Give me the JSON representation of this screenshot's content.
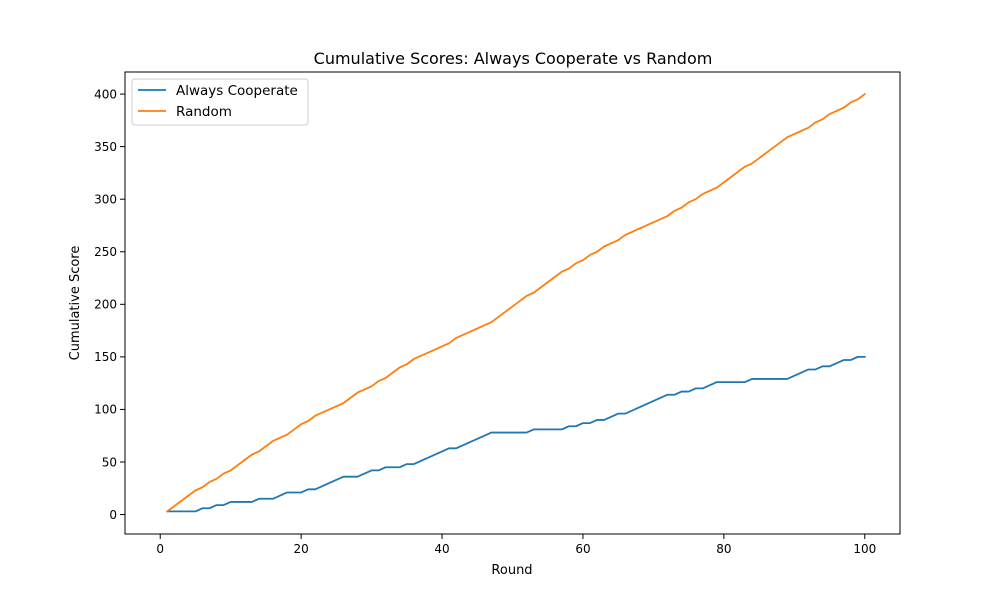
{
  "chart_data": {
    "type": "line",
    "title": "Cumulative Scores: Always Cooperate vs Random",
    "xlabel": "Round",
    "ylabel": "Cumulative Score",
    "xlim": [
      -5,
      105
    ],
    "ylim": [
      -18.5,
      421
    ],
    "xticks": [
      0,
      20,
      40,
      60,
      80,
      100
    ],
    "yticks": [
      0,
      50,
      100,
      150,
      200,
      250,
      300,
      350,
      400
    ],
    "grid": false,
    "legend_position": "top-left",
    "series": [
      {
        "name": "Always Cooperate",
        "color": "#1f77b4",
        "points": [
          [
            1,
            3
          ],
          [
            5,
            3
          ],
          [
            6,
            6
          ],
          [
            7,
            6
          ],
          [
            8,
            9
          ],
          [
            9,
            9
          ],
          [
            10,
            12
          ],
          [
            13,
            12
          ],
          [
            14,
            15
          ],
          [
            16,
            15
          ],
          [
            18,
            21
          ],
          [
            20,
            21
          ],
          [
            21,
            24
          ],
          [
            22,
            24
          ],
          [
            26,
            36
          ],
          [
            28,
            36
          ],
          [
            30,
            42
          ],
          [
            31,
            42
          ],
          [
            32,
            45
          ],
          [
            34,
            45
          ],
          [
            35,
            48
          ],
          [
            36,
            48
          ],
          [
            41,
            63
          ],
          [
            42,
            63
          ],
          [
            47,
            78
          ],
          [
            52,
            78
          ],
          [
            53,
            81
          ],
          [
            57,
            81
          ],
          [
            58,
            84
          ],
          [
            59,
            84
          ],
          [
            60,
            87
          ],
          [
            61,
            87
          ],
          [
            62,
            90
          ],
          [
            63,
            90
          ],
          [
            65,
            96
          ],
          [
            66,
            96
          ],
          [
            72,
            114
          ],
          [
            73,
            114
          ],
          [
            74,
            117
          ],
          [
            75,
            117
          ],
          [
            76,
            120
          ],
          [
            77,
            120
          ],
          [
            79,
            126
          ],
          [
            83,
            126
          ],
          [
            84,
            129
          ],
          [
            89,
            129
          ],
          [
            92,
            138
          ],
          [
            93,
            138
          ],
          [
            94,
            141
          ],
          [
            95,
            141
          ],
          [
            97,
            147
          ],
          [
            98,
            147
          ],
          [
            99,
            150
          ],
          [
            100,
            150
          ]
        ]
      },
      {
        "name": "Random",
        "color": "#ff7f0e",
        "points": [
          [
            1,
            3
          ],
          [
            3,
            13
          ],
          [
            5,
            23
          ],
          [
            6,
            26
          ],
          [
            7,
            31
          ],
          [
            8,
            34
          ],
          [
            9,
            39
          ],
          [
            10,
            42
          ],
          [
            11,
            47
          ],
          [
            12,
            52
          ],
          [
            13,
            57
          ],
          [
            14,
            60
          ],
          [
            15,
            65
          ],
          [
            16,
            70
          ],
          [
            17,
            73
          ],
          [
            18,
            76
          ],
          [
            19,
            81
          ],
          [
            20,
            86
          ],
          [
            21,
            89
          ],
          [
            22,
            94
          ],
          [
            23,
            97
          ],
          [
            24,
            100
          ],
          [
            25,
            103
          ],
          [
            26,
            106
          ],
          [
            27,
            111
          ],
          [
            28,
            116
          ],
          [
            29,
            119
          ],
          [
            30,
            122
          ],
          [
            31,
            127
          ],
          [
            32,
            130
          ],
          [
            33,
            135
          ],
          [
            34,
            140
          ],
          [
            35,
            143
          ],
          [
            36,
            148
          ],
          [
            37,
            151
          ],
          [
            38,
            154
          ],
          [
            39,
            157
          ],
          [
            40,
            160
          ],
          [
            41,
            163
          ],
          [
            42,
            168
          ],
          [
            43,
            171
          ],
          [
            44,
            174
          ],
          [
            45,
            177
          ],
          [
            46,
            180
          ],
          [
            47,
            183
          ],
          [
            48,
            188
          ],
          [
            49,
            193
          ],
          [
            50,
            198
          ],
          [
            51,
            203
          ],
          [
            52,
            208
          ],
          [
            53,
            211
          ],
          [
            54,
            216
          ],
          [
            55,
            221
          ],
          [
            56,
            226
          ],
          [
            57,
            231
          ],
          [
            58,
            234
          ],
          [
            59,
            239
          ],
          [
            60,
            242
          ],
          [
            61,
            247
          ],
          [
            62,
            250
          ],
          [
            63,
            255
          ],
          [
            64,
            258
          ],
          [
            65,
            261
          ],
          [
            66,
            266
          ],
          [
            67,
            269
          ],
          [
            68,
            272
          ],
          [
            69,
            275
          ],
          [
            70,
            278
          ],
          [
            71,
            281
          ],
          [
            72,
            284
          ],
          [
            73,
            289
          ],
          [
            74,
            292
          ],
          [
            75,
            297
          ],
          [
            76,
            300
          ],
          [
            77,
            305
          ],
          [
            78,
            308
          ],
          [
            79,
            311
          ],
          [
            80,
            316
          ],
          [
            81,
            321
          ],
          [
            82,
            326
          ],
          [
            83,
            331
          ],
          [
            84,
            334
          ],
          [
            85,
            339
          ],
          [
            86,
            344
          ],
          [
            87,
            349
          ],
          [
            88,
            354
          ],
          [
            89,
            359
          ],
          [
            90,
            362
          ],
          [
            91,
            365
          ],
          [
            92,
            368
          ],
          [
            93,
            373
          ],
          [
            94,
            376
          ],
          [
            95,
            381
          ],
          [
            96,
            384
          ],
          [
            97,
            387
          ],
          [
            98,
            392
          ],
          [
            99,
            395
          ],
          [
            100,
            400
          ]
        ]
      }
    ]
  }
}
